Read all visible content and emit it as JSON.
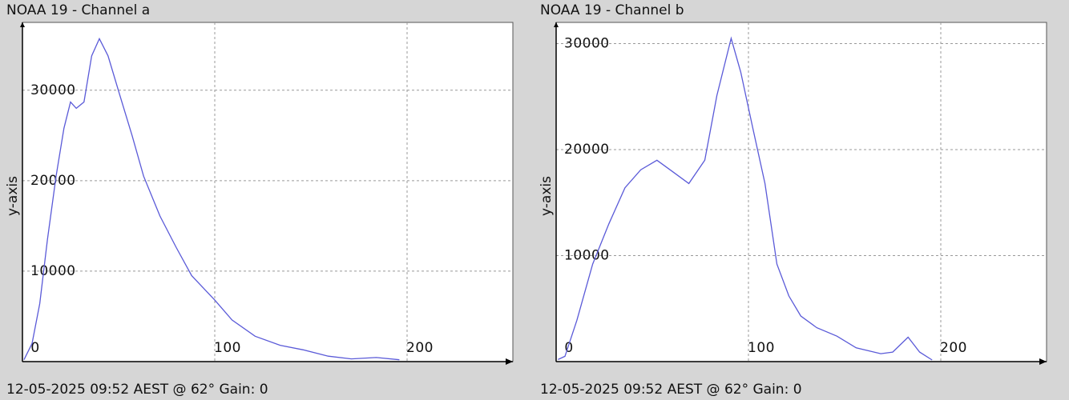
{
  "chart_data": [
    {
      "type": "line",
      "title": "NOAA 19 - Channel a",
      "ylabel": "y-axis",
      "footer": "12-05-2025 09:52 AEST @ 62° Gain: 0",
      "xlim": [
        0,
        255
      ],
      "ylim": [
        0,
        37500
      ],
      "xticks": [
        0,
        100,
        200
      ],
      "yticks": [
        10000,
        20000,
        30000
      ],
      "grid": true,
      "color": "#5a5ad8",
      "x": [
        0.8,
        5,
        9,
        13,
        17.5,
        21.6,
        25,
        28,
        32,
        36,
        40,
        44.5,
        50.7,
        57,
        63,
        71.5,
        80,
        88,
        100,
        109,
        121,
        134,
        146,
        159,
        171,
        184,
        196
      ],
      "values": [
        200,
        2000,
        6400,
        13500,
        20500,
        25800,
        28700,
        28000,
        28700,
        33800,
        35700,
        33800,
        29400,
        25000,
        20500,
        16100,
        12600,
        9500,
        6800,
        4600,
        2800,
        1800,
        1300,
        600,
        300,
        450,
        200
      ]
    },
    {
      "type": "line",
      "title": "NOAA 19 - Channel b",
      "ylabel": "y-axis",
      "footer": "12-05-2025 09:52 AEST @ 62° Gain: 0",
      "xlim": [
        0,
        255
      ],
      "ylim": [
        0,
        32000
      ],
      "xticks": [
        0,
        100,
        200
      ],
      "yticks": [
        10000,
        20000,
        30000
      ],
      "grid": true,
      "color": "#5a5ad8",
      "x": [
        1,
        4.6,
        10.8,
        19,
        27.4,
        35.8,
        44,
        52.4,
        60.7,
        69,
        77.3,
        83.6,
        91,
        96,
        102.3,
        108.6,
        114.8,
        121,
        127.2,
        135.5,
        146,
        156,
        168.8,
        175,
        183,
        189,
        195.5
      ],
      "values": [
        200,
        500,
        3900,
        9200,
        13000,
        16400,
        18100,
        19000,
        17900,
        16800,
        19000,
        25100,
        30500,
        27300,
        22000,
        16800,
        9200,
        6200,
        4300,
        3200,
        2400,
        1300,
        750,
        900,
        2300,
        900,
        150
      ]
    }
  ]
}
